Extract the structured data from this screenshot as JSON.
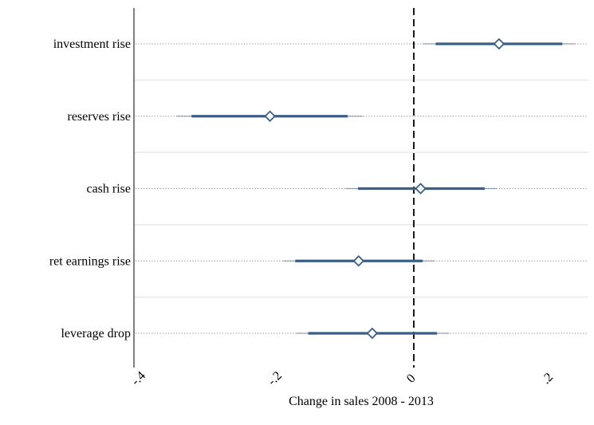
{
  "chart_data": {
    "type": "coefficient-plot",
    "xlabel": "Change in sales 2008 - 2013",
    "x_ticks": [
      {
        "value": -0.4,
        "label": "-.4"
      },
      {
        "value": -0.2,
        "label": "-.2"
      },
      {
        "value": 0,
        "label": "0"
      },
      {
        "value": 0.2,
        "label": ".2"
      }
    ],
    "xlim": [
      -0.4,
      0.25
    ],
    "reference_line": 0,
    "categories": [
      "investment rise",
      "reserves rise",
      "cash rise",
      "ret earnings rise",
      "leverage drop"
    ],
    "series": [
      {
        "estimate": 0.125,
        "ci_inner": [
          0.032,
          0.218
        ],
        "ci_outer": [
          0.013,
          0.237
        ]
      },
      {
        "estimate": -0.211,
        "ci_inner": [
          -0.326,
          -0.097
        ],
        "ci_outer": [
          -0.348,
          -0.075
        ]
      },
      {
        "estimate": 0.01,
        "ci_inner": [
          -0.082,
          0.104
        ],
        "ci_outer": [
          -0.1,
          0.122
        ]
      },
      {
        "estimate": -0.081,
        "ci_inner": [
          -0.174,
          0.013
        ],
        "ci_outer": [
          -0.192,
          0.031
        ]
      },
      {
        "estimate": -0.061,
        "ci_inner": [
          -0.155,
          0.034
        ],
        "ci_outer": [
          -0.173,
          0.052
        ]
      }
    ],
    "colors": {
      "estimate": "#3b5f86",
      "ci": "#3b5f86",
      "ref_line": "#000000",
      "separator": "#e9eef1",
      "guide": "#8a8a8a"
    },
    "grid": false,
    "legend": "none"
  }
}
